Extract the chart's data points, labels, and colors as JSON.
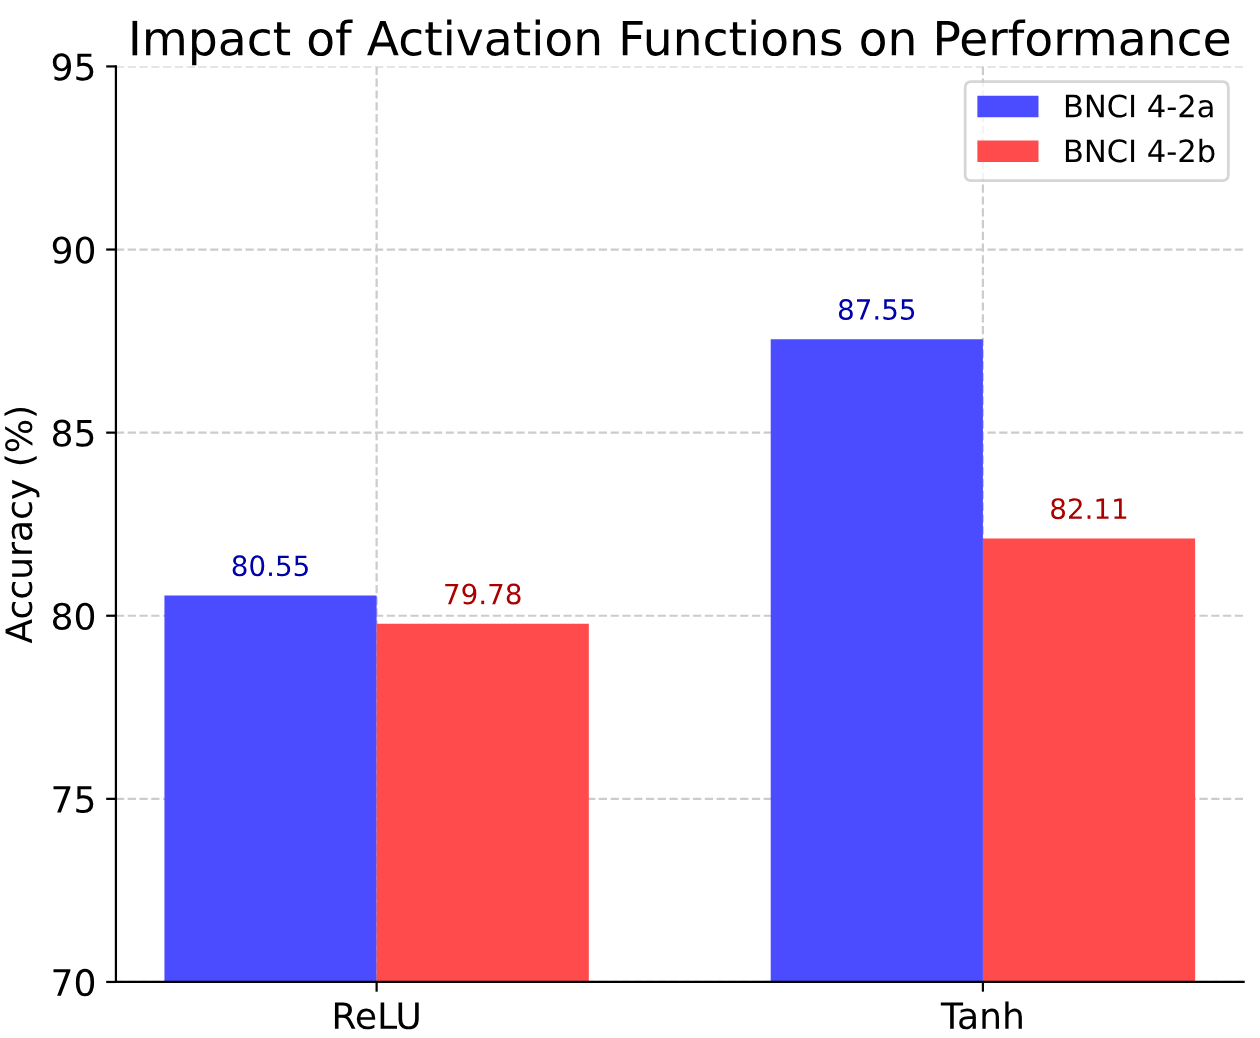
{
  "chart_data": {
    "type": "bar",
    "title": "Impact of Activation Functions on Performance",
    "ylabel": "Accuracy (%)",
    "categories": [
      "ReLU",
      "Tanh"
    ],
    "series": [
      {
        "name": "BNCI 4-2a",
        "color": "#4b4bff",
        "values": [
          80.55,
          87.55
        ]
      },
      {
        "name": "BNCI 4-2b",
        "color": "#ff4b4b",
        "values": [
          79.78,
          82.11
        ]
      }
    ],
    "ylim": [
      70,
      95
    ],
    "yticks": [
      70,
      75,
      80,
      85,
      90,
      95
    ],
    "grid": true,
    "legend": "top right",
    "data_labels": true
  }
}
